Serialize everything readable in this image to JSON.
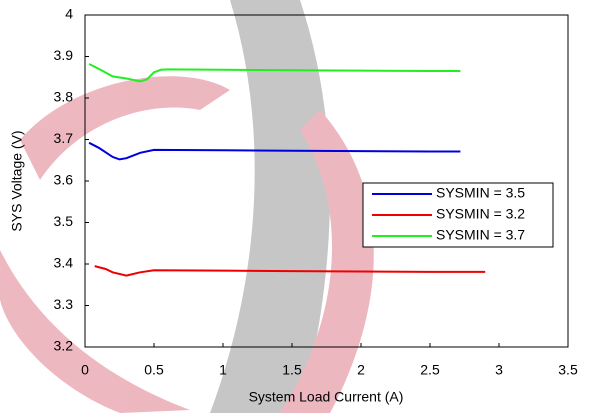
{
  "chart_data": {
    "type": "line",
    "x_label": "System Load Current (A)",
    "y_label": "SYS Voltage (V)",
    "xlim": [
      0,
      3.5
    ],
    "xticks": [
      0,
      0.5,
      1,
      1.5,
      2,
      2.5,
      3,
      3.5
    ],
    "ylim": [
      3.2,
      4
    ],
    "yticks": [
      3.2,
      3.3,
      3.4,
      3.5,
      3.6,
      3.7,
      3.8,
      3.9,
      4
    ],
    "series": [
      {
        "name": "SYSMIN = 3.5",
        "color": "#0000dd",
        "x": [
          0.03,
          0.1,
          0.2,
          0.25,
          0.3,
          0.4,
          0.5,
          1,
          1.5,
          2,
          2.5,
          2.72
        ],
        "values": [
          3.692,
          3.68,
          3.658,
          3.652,
          3.655,
          3.668,
          3.675,
          3.674,
          3.673,
          3.672,
          3.671,
          3.671
        ]
      },
      {
        "name": "SYSMIN = 3.2",
        "color": "#ee0000",
        "x": [
          0.07,
          0.15,
          0.2,
          0.3,
          0.4,
          0.5,
          1,
          1.5,
          2,
          2.5,
          2.9
        ],
        "values": [
          3.395,
          3.388,
          3.38,
          3.372,
          3.38,
          3.385,
          3.384,
          3.383,
          3.382,
          3.381,
          3.381
        ]
      },
      {
        "name": "SYSMIN = 3.7",
        "color": "#22ee22",
        "x": [
          0.03,
          0.1,
          0.2,
          0.3,
          0.4,
          0.45,
          0.5,
          0.55,
          0.6,
          1,
          1.5,
          2,
          2.5,
          2.72
        ],
        "values": [
          3.882,
          3.87,
          3.852,
          3.847,
          3.84,
          3.845,
          3.862,
          3.868,
          3.869,
          3.868,
          3.867,
          3.866,
          3.865,
          3.865
        ]
      }
    ]
  }
}
